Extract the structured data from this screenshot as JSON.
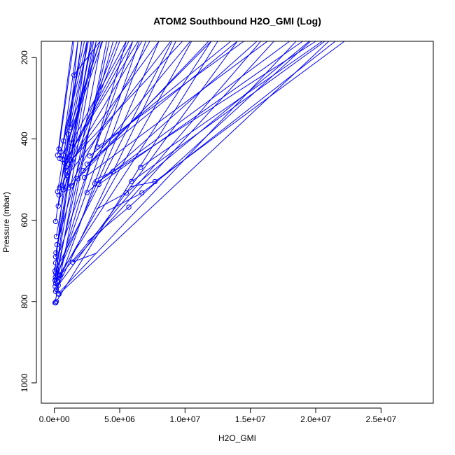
{
  "chart_data": {
    "type": "scatter",
    "title": "ATOM2 Southbound H2O_GMI (Log)",
    "xlabel": "H2O_GMI",
    "ylabel": "Pressure (mbar)",
    "xlim": [
      0,
      29000000
    ],
    "ylim": [
      1050,
      160
    ],
    "y_reversed": true,
    "x_ticks": [
      0,
      5000000,
      10000000,
      15000000,
      20000000,
      25000000
    ],
    "x_tick_labels": [
      "0.0e+00",
      "5.0e+06",
      "1.0e+07",
      "1.5e+07",
      "2.0e+07",
      "2.5e+07"
    ],
    "y_ticks": [
      200,
      400,
      600,
      800,
      1000
    ],
    "y_tick_labels": [
      "200",
      "400",
      "600",
      "800",
      "1000"
    ],
    "grid": false,
    "legend": "none",
    "color": "#0000ff",
    "marker": "open-circle",
    "points": [
      [
        1500000,
        243
      ],
      [
        1200000,
        372
      ],
      [
        1050000,
        388
      ],
      [
        700000,
        405
      ],
      [
        1300000,
        410
      ],
      [
        350000,
        425
      ],
      [
        500000,
        432
      ],
      [
        3300000,
        420
      ],
      [
        250000,
        440
      ],
      [
        700000,
        440
      ],
      [
        1000000,
        445
      ],
      [
        400000,
        448
      ],
      [
        600000,
        450
      ],
      [
        900000,
        455
      ],
      [
        1300000,
        452
      ],
      [
        2700000,
        442
      ],
      [
        800000,
        460
      ],
      [
        1100000,
        462
      ],
      [
        2500000,
        462
      ],
      [
        6600000,
        470
      ],
      [
        900000,
        478
      ],
      [
        2200000,
        478
      ],
      [
        4500000,
        480
      ],
      [
        1000000,
        490
      ],
      [
        2300000,
        495
      ],
      [
        1800000,
        498
      ],
      [
        7700000,
        505
      ],
      [
        5900000,
        505
      ],
      [
        3100000,
        510
      ],
      [
        3400000,
        512
      ],
      [
        600000,
        515
      ],
      [
        1300000,
        515
      ],
      [
        400000,
        520
      ],
      [
        1100000,
        520
      ],
      [
        700000,
        525
      ],
      [
        250000,
        530
      ],
      [
        2500000,
        532
      ],
      [
        5500000,
        533
      ],
      [
        6700000,
        533
      ],
      [
        350000,
        538
      ],
      [
        300000,
        565
      ],
      [
        5700000,
        568
      ],
      [
        100000,
        603
      ],
      [
        150000,
        640
      ],
      [
        200000,
        660
      ],
      [
        120000,
        680
      ],
      [
        100000,
        690
      ],
      [
        1400000,
        703
      ],
      [
        100000,
        705
      ],
      [
        150000,
        720
      ],
      [
        50000,
        725
      ],
      [
        100000,
        730
      ],
      [
        200000,
        735
      ],
      [
        350000,
        735
      ],
      [
        450000,
        735
      ],
      [
        80000,
        740
      ],
      [
        120000,
        745
      ],
      [
        50000,
        748
      ],
      [
        200000,
        750
      ],
      [
        100000,
        755
      ],
      [
        300000,
        760
      ],
      [
        60000,
        763
      ],
      [
        150000,
        770
      ],
      [
        100000,
        775
      ],
      [
        300000,
        780
      ],
      [
        350000,
        782
      ],
      [
        50000,
        803
      ],
      [
        100000,
        803
      ],
      [
        150000,
        800
      ]
    ],
    "lines": [
      [
        [
          1500000,
          243
        ],
        [
          3500000,
          160
        ]
      ],
      [
        [
          1200000,
          372
        ],
        [
          3500000,
          160
        ]
      ],
      [
        [
          1050000,
          388
        ],
        [
          2600000,
          160
        ]
      ],
      [
        [
          700000,
          405
        ],
        [
          1800000,
          160
        ]
      ],
      [
        [
          1300000,
          410
        ],
        [
          5500000,
          160
        ]
      ],
      [
        [
          350000,
          425
        ],
        [
          1500000,
          160
        ]
      ],
      [
        [
          500000,
          432
        ],
        [
          2300000,
          160
        ]
      ],
      [
        [
          3300000,
          420
        ],
        [
          14500000,
          160
        ]
      ],
      [
        [
          250000,
          440
        ],
        [
          1400000,
          160
        ]
      ],
      [
        [
          700000,
          440
        ],
        [
          3700000,
          160
        ]
      ],
      [
        [
          1000000,
          445
        ],
        [
          6400000,
          160
        ]
      ],
      [
        [
          400000,
          448
        ],
        [
          2500000,
          160
        ]
      ],
      [
        [
          600000,
          450
        ],
        [
          3500000,
          160
        ]
      ],
      [
        [
          900000,
          455
        ],
        [
          6000000,
          160
        ]
      ],
      [
        [
          1300000,
          452
        ],
        [
          9800000,
          160
        ]
      ],
      [
        [
          2700000,
          442
        ],
        [
          13500000,
          160
        ]
      ],
      [
        [
          800000,
          460
        ],
        [
          5700000,
          160
        ]
      ],
      [
        [
          1100000,
          462
        ],
        [
          8000000,
          160
        ]
      ],
      [
        [
          2500000,
          462
        ],
        [
          14000000,
          160
        ]
      ],
      [
        [
          6600000,
          470
        ],
        [
          20500000,
          160
        ]
      ],
      [
        [
          900000,
          478
        ],
        [
          6700000,
          160
        ]
      ],
      [
        [
          2200000,
          478
        ],
        [
          12000000,
          160
        ]
      ],
      [
        [
          4500000,
          480
        ],
        [
          18000000,
          160
        ]
      ],
      [
        [
          1000000,
          490
        ],
        [
          8900000,
          160
        ]
      ],
      [
        [
          2300000,
          495
        ],
        [
          16300000,
          160
        ]
      ],
      [
        [
          1800000,
          498
        ],
        [
          11800000,
          160
        ]
      ],
      [
        [
          7700000,
          505
        ],
        [
          22200000,
          160
        ]
      ],
      [
        [
          5900000,
          505
        ],
        [
          20700000,
          160
        ]
      ],
      [
        [
          3100000,
          510
        ],
        [
          20000000,
          160
        ]
      ],
      [
        [
          3400000,
          512
        ],
        [
          19000000,
          160
        ]
      ],
      [
        [
          600000,
          515
        ],
        [
          4800000,
          160
        ]
      ],
      [
        [
          1300000,
          515
        ],
        [
          10400000,
          160
        ]
      ],
      [
        [
          400000,
          520
        ],
        [
          3200000,
          160
        ]
      ],
      [
        [
          1100000,
          520
        ],
        [
          7300000,
          160
        ]
      ],
      [
        [
          700000,
          525
        ],
        [
          5000000,
          160
        ]
      ],
      [
        [
          250000,
          530
        ],
        [
          2100000,
          160
        ]
      ],
      [
        [
          2500000,
          532
        ],
        [
          15500000,
          160
        ]
      ],
      [
        [
          5500000,
          533
        ],
        [
          19500000,
          160
        ]
      ],
      [
        [
          6700000,
          533
        ],
        [
          21500000,
          160
        ]
      ],
      [
        [
          350000,
          538
        ],
        [
          2600000,
          160
        ]
      ],
      [
        [
          300000,
          565
        ],
        [
          2900000,
          160
        ]
      ],
      [
        [
          5700000,
          568
        ],
        [
          19600000,
          160
        ]
      ],
      [
        [
          100000,
          603
        ],
        [
          2100000,
          160
        ]
      ],
      [
        [
          150000,
          640
        ],
        [
          2800000,
          160
        ]
      ],
      [
        [
          200000,
          660
        ],
        [
          4500000,
          160
        ]
      ],
      [
        [
          120000,
          680
        ],
        [
          2800000,
          160
        ]
      ],
      [
        [
          100000,
          690
        ],
        [
          3000000,
          160
        ]
      ],
      [
        [
          1400000,
          703
        ],
        [
          16800000,
          160
        ]
      ],
      [
        [
          100000,
          705
        ],
        [
          6000000,
          160
        ]
      ],
      [
        [
          150000,
          720
        ],
        [
          9000000,
          160
        ]
      ],
      [
        [
          50000,
          725
        ],
        [
          1800000,
          160
        ]
      ],
      [
        [
          100000,
          730
        ],
        [
          3200000,
          160
        ]
      ],
      [
        [
          200000,
          735
        ],
        [
          8000000,
          160
        ]
      ],
      [
        [
          350000,
          735
        ],
        [
          12000000,
          160
        ]
      ],
      [
        [
          450000,
          735
        ],
        [
          15800000,
          160
        ]
      ],
      [
        [
          80000,
          740
        ],
        [
          4200000,
          160
        ]
      ],
      [
        [
          120000,
          745
        ],
        [
          6500000,
          160
        ]
      ],
      [
        [
          50000,
          748
        ],
        [
          2500000,
          160
        ]
      ],
      [
        [
          200000,
          750
        ],
        [
          10500000,
          160
        ]
      ],
      [
        [
          100000,
          755
        ],
        [
          5500000,
          160
        ]
      ],
      [
        [
          300000,
          760
        ],
        [
          14000000,
          160
        ]
      ],
      [
        [
          60000,
          763
        ],
        [
          3600000,
          160
        ]
      ],
      [
        [
          150000,
          770
        ],
        [
          9300000,
          160
        ]
      ],
      [
        [
          100000,
          775
        ],
        [
          7000000,
          160
        ]
      ],
      [
        [
          300000,
          780
        ],
        [
          18500000,
          160
        ]
      ],
      [
        [
          350000,
          782
        ],
        [
          21000000,
          160
        ]
      ],
      [
        [
          50000,
          803
        ],
        [
          4000000,
          160
        ]
      ],
      [
        [
          150000,
          800
        ],
        [
          12500000,
          160
        ]
      ],
      [
        [
          5700000,
          568
        ],
        [
          2500000,
          653
        ]
      ],
      [
        [
          6700000,
          533
        ],
        [
          4000000,
          578
        ]
      ],
      [
        [
          7700000,
          505
        ],
        [
          5800000,
          518
        ]
      ],
      [
        [
          4500000,
          480
        ],
        [
          3000000,
          502
        ]
      ],
      [
        [
          1400000,
          703
        ],
        [
          3300000,
          680
        ]
      ],
      [
        [
          5500000,
          533
        ],
        [
          3200000,
          573
        ]
      ]
    ]
  }
}
